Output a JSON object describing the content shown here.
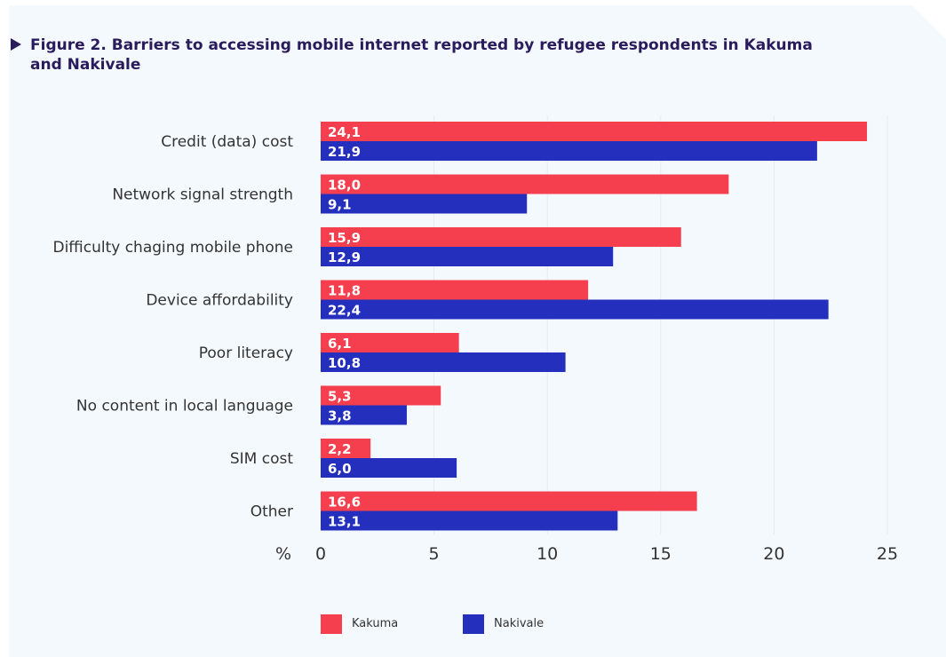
{
  "chart_data": {
    "type": "bar",
    "orientation": "horizontal",
    "title": "Figure 2. Barriers to accessing mobile internet reported by refugee respondents in Kakuma and Nakivale",
    "categories": [
      "Credit (data) cost",
      "Network signal strength",
      "Difficulty chaging mobile phone",
      "Device affordability",
      "Poor literacy",
      "No content in local language",
      "SIM cost",
      "Other"
    ],
    "series": [
      {
        "name": "Kakuma",
        "color": "#f53f4e",
        "values": [
          24.1,
          18.0,
          15.9,
          11.8,
          6.1,
          5.3,
          2.2,
          16.6
        ],
        "labels": [
          "24,1",
          "18,0",
          "15,9",
          "11,8",
          "6,1",
          "5,3",
          "2,2",
          "16,6"
        ]
      },
      {
        "name": "Nakivale",
        "color": "#2430bd",
        "values": [
          21.9,
          9.1,
          12.9,
          22.4,
          10.8,
          3.8,
          6.0,
          13.1
        ],
        "labels": [
          "21,9",
          "9,1",
          "12,9",
          "22,4",
          "10,8",
          "3,8",
          "6,0",
          "13,1"
        ]
      }
    ],
    "xlabel": "%",
    "xlim": [
      0,
      25
    ],
    "xticks": [
      "0",
      "5",
      "10",
      "15",
      "20",
      "25"
    ],
    "grid": true,
    "legend_position": "bottom"
  }
}
